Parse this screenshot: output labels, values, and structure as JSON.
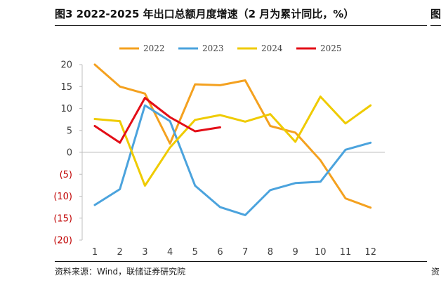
{
  "header": {
    "title": "图3  2022-2025 年出口总额月度增速（2 月为累计同比，%）",
    "right_clip_char": "图"
  },
  "footer": {
    "source": "资料来源：Wind，联储证券研究院",
    "right_clip_char": "资"
  },
  "colors": {
    "negative_label": "#C00000",
    "positive_label": "#404040"
  },
  "chart_data": {
    "type": "line",
    "title": "",
    "xlabel": "",
    "ylabel": "",
    "categories": [
      "1",
      "2",
      "3",
      "4",
      "5",
      "6",
      "7",
      "8",
      "9",
      "10",
      "11",
      "12"
    ],
    "ylim": [
      -20,
      20
    ],
    "yticks": [
      20,
      15,
      10,
      5,
      0,
      -5,
      -10,
      -15,
      -20
    ],
    "ytick_labels": [
      "20",
      "15",
      "10",
      "5",
      "0",
      "(5)",
      "(10)",
      "(15)",
      "(20)"
    ],
    "grid": false,
    "legend_position": "top",
    "series": [
      {
        "name": "2022",
        "color": "#F4A11F",
        "values": [
          20,
          15,
          13.4,
          2,
          15.5,
          15.3,
          16.4,
          6,
          4.5,
          -1.8,
          -10.5,
          -12.6
        ]
      },
      {
        "name": "2023",
        "color": "#4BA3DD",
        "values": [
          -12,
          -8.4,
          10.7,
          7.1,
          -7.6,
          -12.5,
          -14.3,
          -8.6,
          -7,
          -6.7,
          0.6,
          2.2
        ]
      },
      {
        "name": "2024",
        "color": "#EFCB00",
        "values": [
          7.6,
          7.1,
          -7.6,
          1.1,
          7.4,
          8.5,
          7,
          8.7,
          2.4,
          12.7,
          6.6,
          10.7
        ]
      },
      {
        "name": "2025",
        "color": "#E30E17",
        "values": [
          6,
          2.2,
          12.4,
          8,
          4.8,
          5.7,
          null,
          null,
          null,
          null,
          null,
          null
        ]
      }
    ]
  }
}
